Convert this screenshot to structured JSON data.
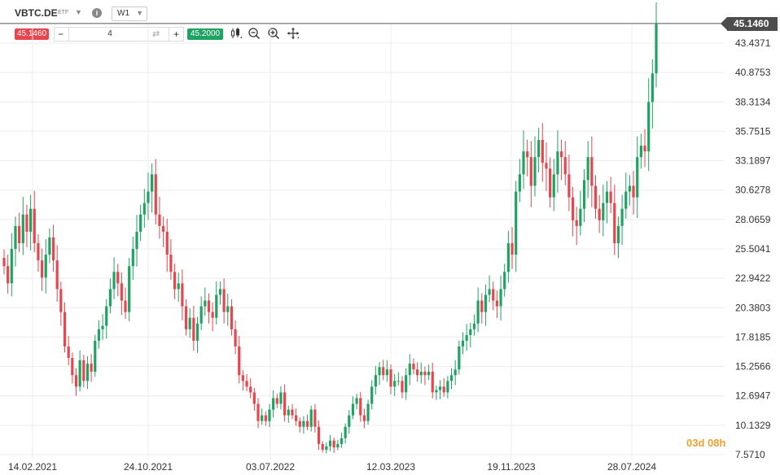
{
  "header": {
    "symbol": "VBTC.DE",
    "symbol_type": "ETF",
    "timeframe": "W1",
    "sell_price": "45.1460",
    "buy_price": "45.2000",
    "quantity": "4",
    "minus": "−",
    "plus": "+",
    "swap_glyph": "⇄",
    "caret": "▼",
    "info": "i"
  },
  "price_tag": "45.1460",
  "countdown": "03d 08h",
  "colors": {
    "up": "#1fa363",
    "down": "#e8454e",
    "grid": "#ececec"
  },
  "chart_data": {
    "type": "candlestick",
    "title": "",
    "xlabel": "",
    "ylabel": "",
    "x_tick_labels": [
      "14.02.2021",
      "24.10.2021",
      "03.07.2022",
      "12.03.2023",
      "19.11.2023",
      "28.07.2024"
    ],
    "y_tick_labels": [
      "43.4371",
      "40.8753",
      "38.3134",
      "35.7515",
      "33.1897",
      "30.6278",
      "28.0659",
      "25.5041",
      "22.9422",
      "20.3803",
      "17.8185",
      "15.2566",
      "12.6947",
      "10.1329",
      "7.5710"
    ],
    "y_ticks": [
      43.4371,
      40.8753,
      38.3134,
      35.7515,
      33.1897,
      30.6278,
      28.0659,
      25.5041,
      22.9422,
      20.3803,
      17.8185,
      15.2566,
      12.6947,
      10.1329,
      7.571
    ],
    "ylim": [
      7.2,
      46.0
    ],
    "last_price": 45.146,
    "grid": true,
    "candles_note": "weekly candles, approximate values read off chart",
    "closes": [
      24.0,
      22.5,
      25.5,
      27.5,
      26.0,
      28.5,
      27.0,
      29.0,
      26.0,
      24.5,
      23.0,
      25.0,
      26.5,
      24.5,
      22.0,
      20.0,
      17.0,
      16.0,
      14.5,
      13.5,
      15.8,
      14.0,
      15.5,
      14.8,
      17.5,
      18.5,
      18.8,
      20.5,
      22.0,
      23.5,
      22.5,
      21.0,
      20.0,
      24.0,
      25.5,
      27.0,
      28.5,
      29.5,
      30.5,
      32.0,
      28.5,
      27.5,
      27.0,
      25.0,
      23.5,
      22.0,
      22.5,
      20.5,
      18.5,
      19.5,
      17.5,
      19.0,
      20.5,
      21.0,
      20.0,
      19.5,
      21.5,
      22.0,
      20.0,
      20.5,
      18.5,
      17.0,
      14.5,
      14.0,
      13.5,
      13.0,
      12.0,
      10.5,
      11.0,
      10.5,
      11.5,
      12.5,
      12.0,
      13.0,
      11.0,
      11.5,
      11.0,
      10.5,
      10.0,
      10.5,
      10.0,
      11.5,
      10.0,
      8.5,
      8.0,
      8.3,
      8.8,
      8.2,
      8.5,
      9.0,
      10.0,
      11.0,
      12.0,
      12.5,
      11.0,
      10.5,
      12.0,
      13.5,
      14.5,
      15.2,
      14.5,
      15.0,
      13.5,
      14.0,
      14.0,
      13.0,
      14.5,
      15.5,
      15.0,
      14.5,
      14.8,
      14.5,
      14.8,
      13.0,
      13.2,
      13.5,
      13.0,
      14.0,
      14.5,
      15.0,
      17.0,
      17.5,
      18.0,
      18.5,
      19.0,
      21.0,
      20.0,
      21.5,
      22.0,
      21.0,
      20.5,
      22.0,
      23.5,
      26.0,
      25.0,
      30.5,
      32.0,
      34.0,
      33.5,
      31.0,
      33.5,
      35.0,
      33.0,
      32.5,
      30.0,
      32.0,
      34.0,
      33.5,
      32.0,
      30.0,
      28.0,
      27.5,
      29.0,
      31.5,
      33.5,
      31.0,
      29.0,
      28.0,
      29.5,
      30.5,
      29.5,
      26.0,
      27.5,
      29.0,
      30.5,
      31.0,
      30.0,
      33.5,
      34.5,
      34.0,
      38.3,
      40.8,
      45.1
    ]
  }
}
